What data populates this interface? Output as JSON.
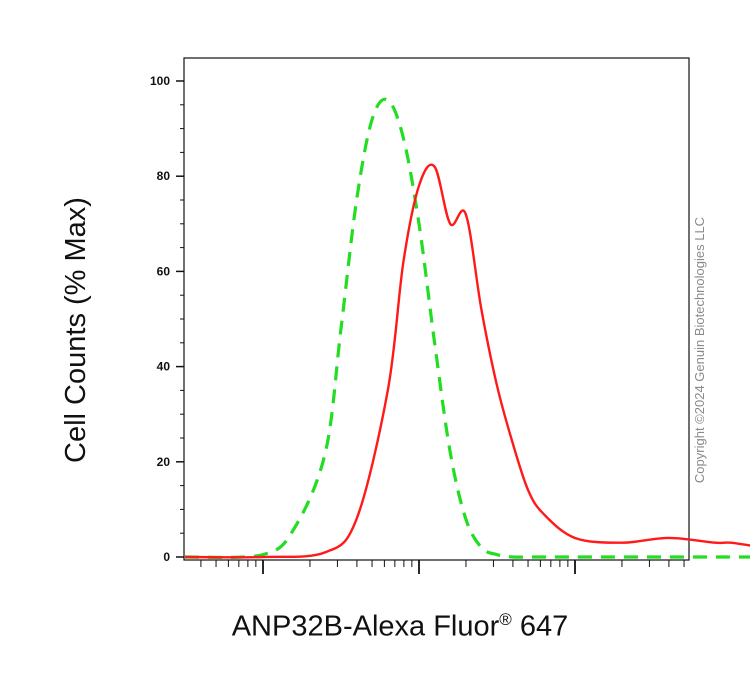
{
  "chart_data": {
    "type": "line",
    "title": "",
    "xlabel": "ANP32B-Alexa Fluor",
    "xlabel_sup": "®",
    "xlabel_suffix": " 647",
    "ylabel": "Cell Counts (% Max)",
    "x_scale": "log",
    "xlim": [
      -1,
      4.5
    ],
    "ylim": [
      0,
      100
    ],
    "ytick_labels": [
      "0",
      "20",
      "40",
      "60",
      "80",
      "100"
    ],
    "grid": false,
    "series": [
      {
        "style": "dashed",
        "color": "#22dd22",
        "x": [
          -0.5,
          0.0,
          0.2,
          0.4,
          0.5,
          0.6,
          0.7,
          0.8,
          0.9,
          1.0,
          1.1,
          1.2,
          1.3,
          1.4,
          1.5,
          1.6,
          1.7,
          1.8,
          2.0,
          2.5,
          3.0,
          3.5,
          4.0,
          4.5
        ],
        "y": [
          0,
          0.5,
          6,
          22,
          48,
          75,
          92,
          96,
          88,
          70,
          45,
          22,
          8,
          2,
          0.5,
          0,
          0,
          0,
          0,
          0,
          0,
          0,
          0,
          0
        ]
      },
      {
        "style": "solid",
        "color": "#ff1a1a",
        "x": [
          -0.5,
          0.0,
          0.4,
          0.6,
          0.8,
          0.9,
          1.0,
          1.1,
          1.2,
          1.3,
          1.4,
          1.5,
          1.6,
          1.7,
          1.8,
          2.0,
          2.3,
          2.6,
          2.9,
          3.0,
          3.2,
          3.4,
          3.6,
          3.8,
          4.0,
          4.5
        ],
        "y": [
          0,
          0,
          1,
          8,
          35,
          62,
          78,
          82,
          70,
          72,
          52,
          36,
          24,
          14,
          9,
          4,
          3,
          4,
          3,
          3,
          2,
          1,
          0.3,
          0,
          0,
          0
        ]
      }
    ]
  },
  "watermark": "Copyright ©2024 Genuin Biotechnologies LLC"
}
